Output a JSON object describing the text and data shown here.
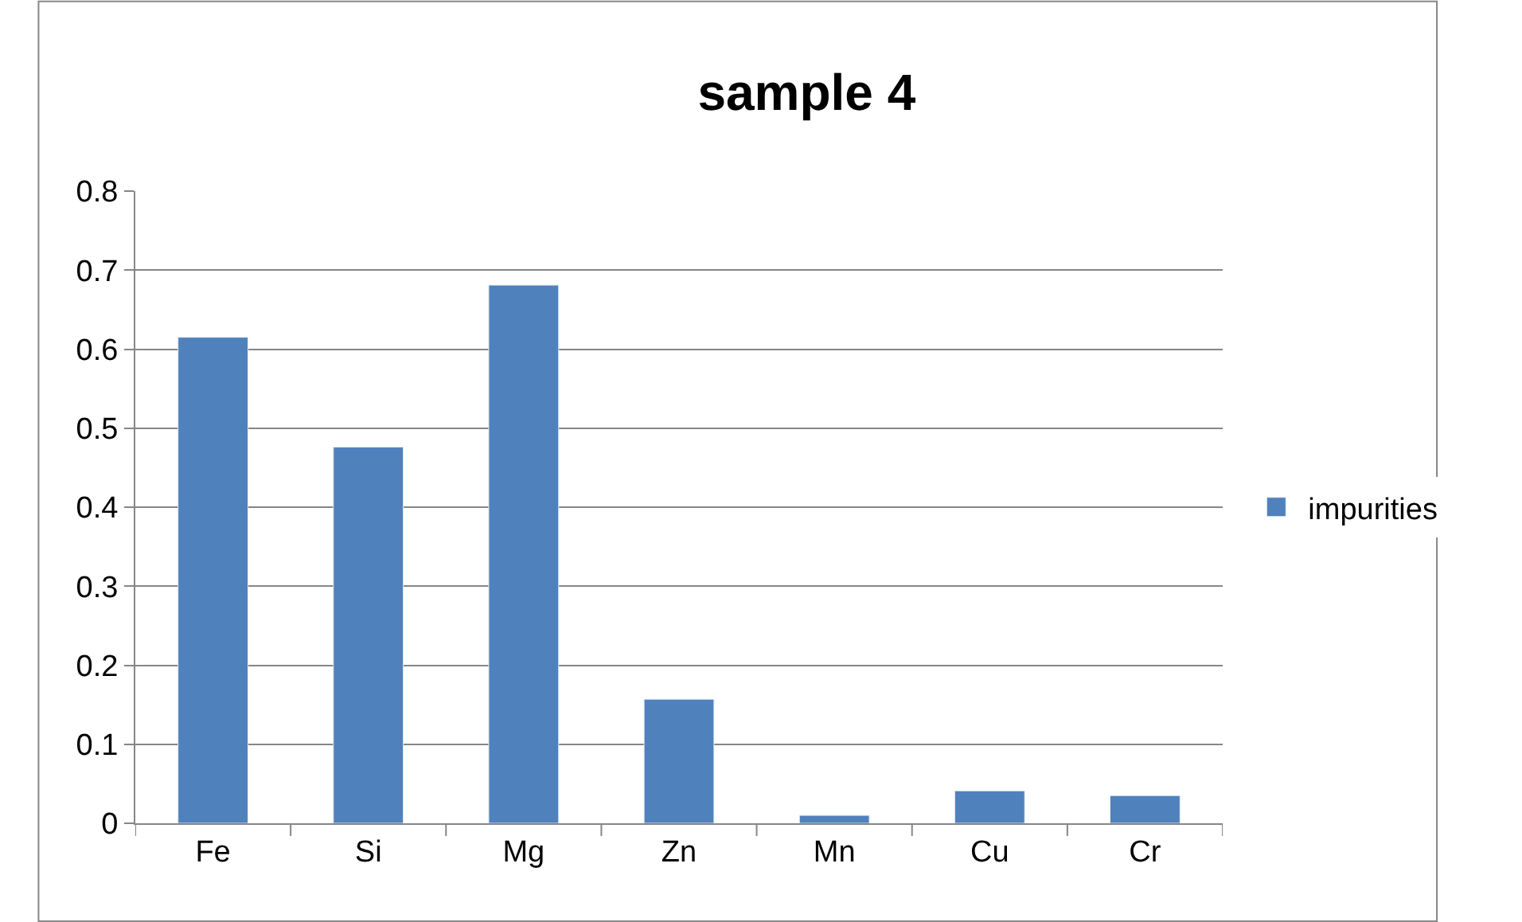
{
  "chart_data": {
    "type": "bar",
    "title": "sample 4",
    "categories": [
      "Fe",
      "Si",
      "Mg",
      "Zn",
      "Mn",
      "Cu",
      "Cr"
    ],
    "series": [
      {
        "name": "impurities",
        "color": "#4f81bd",
        "values": [
          0.615,
          0.476,
          0.681,
          0.157,
          0.01,
          0.041,
          0.035
        ]
      }
    ],
    "ylim": [
      0,
      0.8
    ],
    "yticks": [
      0,
      0.1,
      0.2,
      0.3,
      0.4,
      0.5,
      0.6,
      0.7,
      0.8
    ],
    "grid": "y",
    "legend": "right"
  }
}
